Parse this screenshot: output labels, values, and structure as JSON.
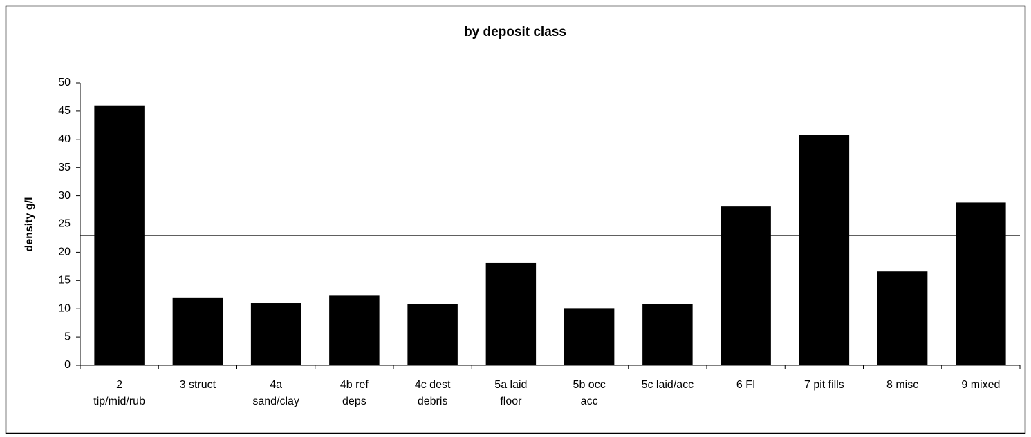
{
  "chart_data": {
    "type": "bar",
    "title": "by deposit class",
    "y_label": "density g/l",
    "categories": [
      "2\ntip/mid/rub",
      "3 struct",
      "4a\nsand/clay",
      "4b ref\ndeps",
      "4c dest\ndebris",
      "5a laid\nfloor",
      "5b occ\nacc",
      "5c laid/acc",
      "6 FI",
      "7 pit fills",
      "8 misc",
      "9 mixed"
    ],
    "values": [
      46,
      12,
      11,
      12.3,
      10.8,
      18.1,
      10.1,
      10.8,
      28.1,
      40.8,
      16.6,
      28.8
    ],
    "color": "#000000",
    "reference_line": 23,
    "ylim": [
      0,
      50
    ],
    "yticks": [
      0,
      5,
      10,
      15,
      20,
      25,
      30,
      35,
      40,
      45,
      50
    ],
    "grid": false
  }
}
